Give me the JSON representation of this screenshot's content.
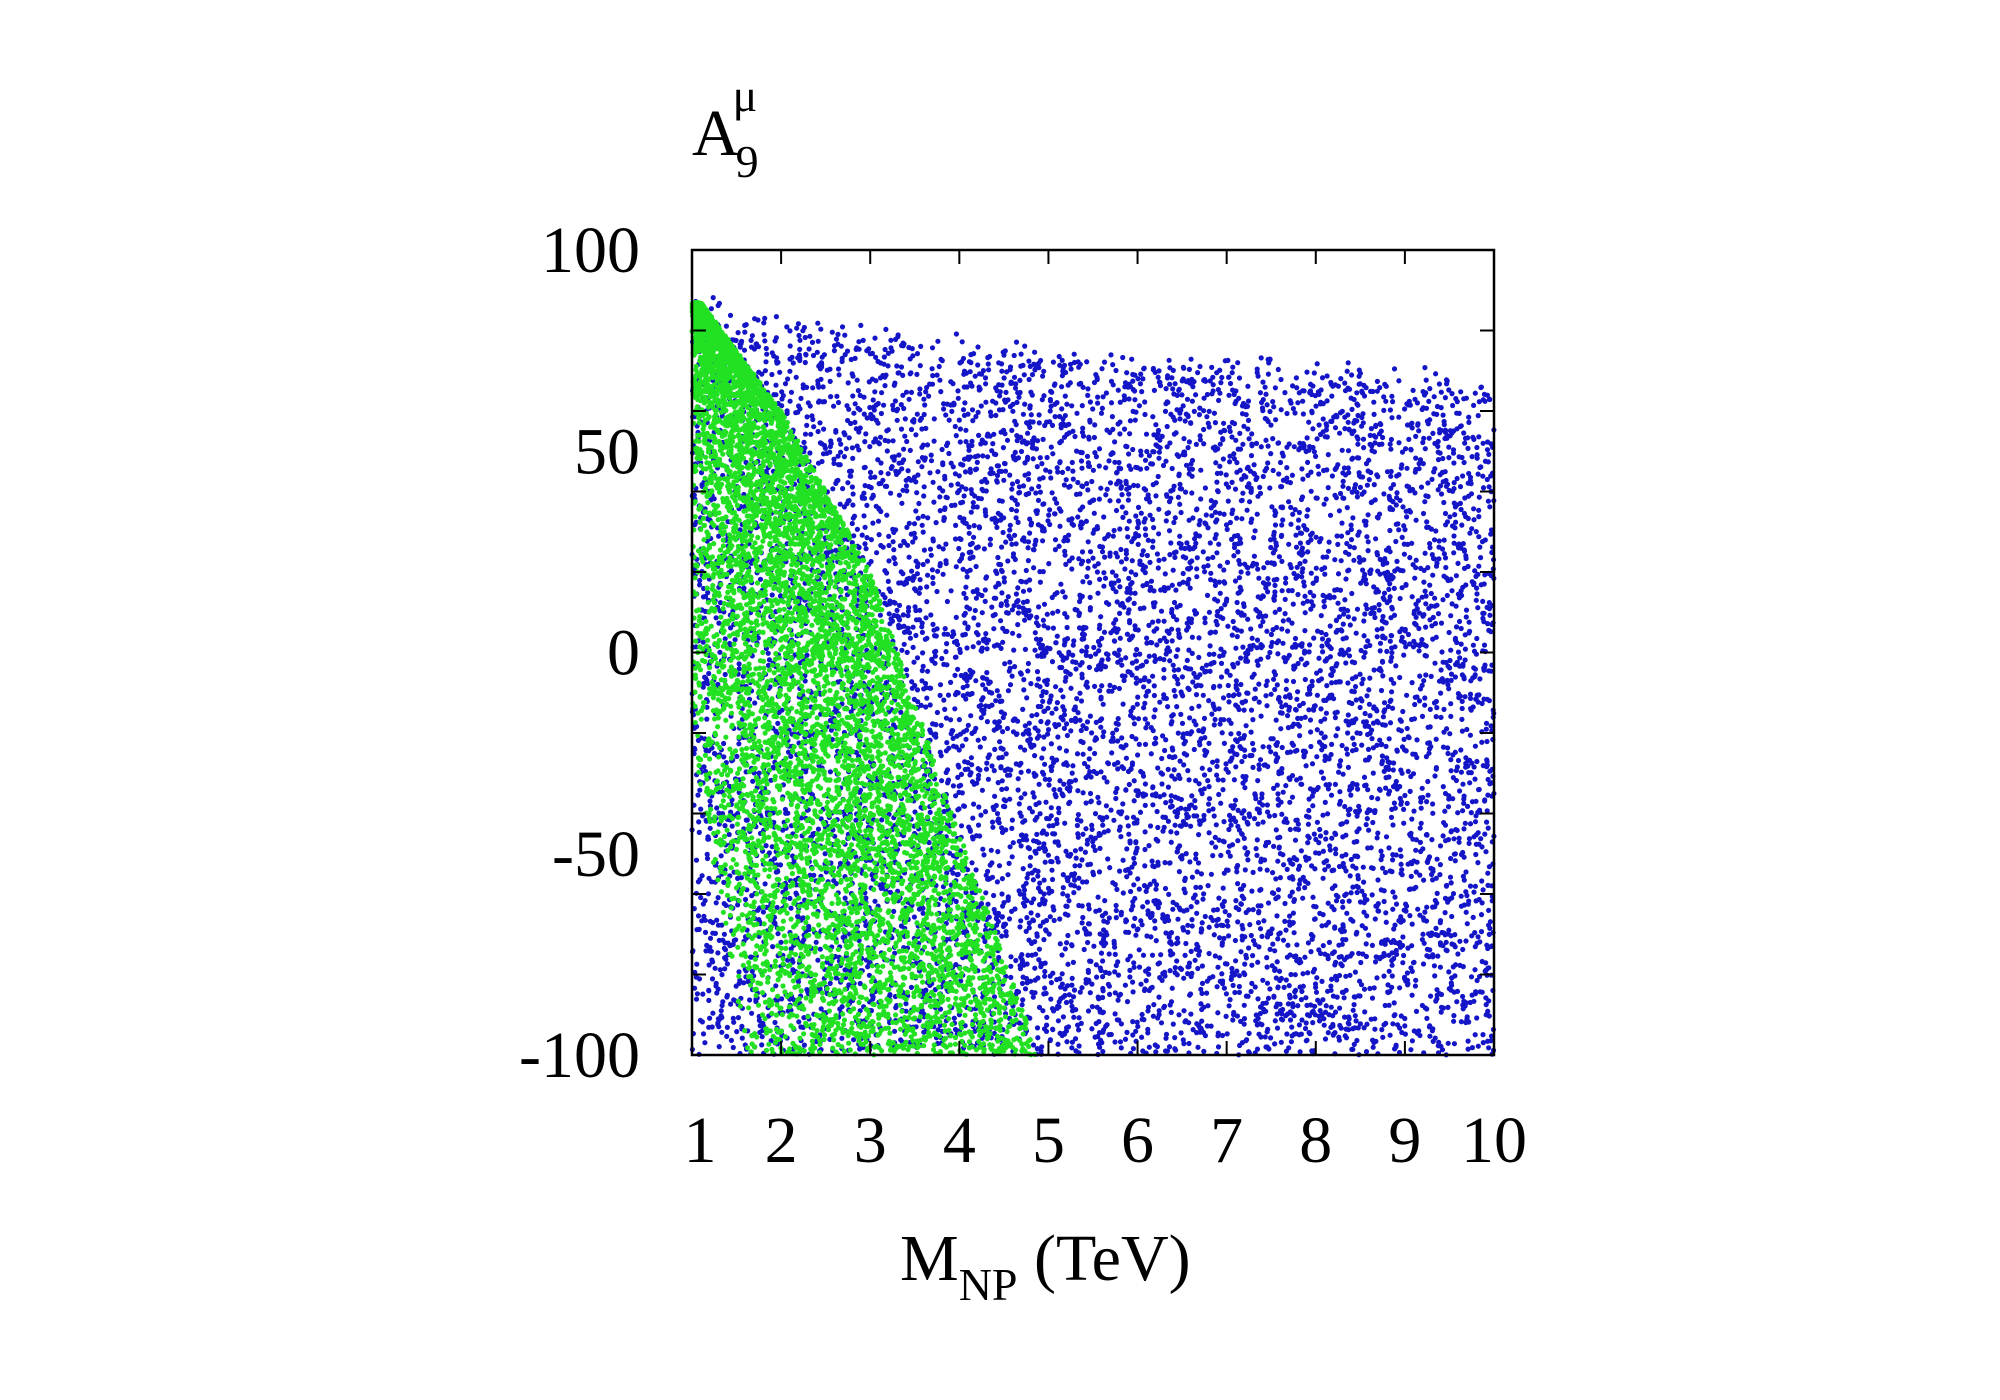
{
  "chart_data": {
    "type": "scatter",
    "ylabel": {
      "main": "A",
      "sub": "9",
      "sup": "μ"
    },
    "xlabel": {
      "main": "M",
      "sub": "NP",
      "rest": " (TeV)"
    },
    "xlim": [
      1,
      10
    ],
    "ylim": [
      -100,
      100
    ],
    "x_ticks": [
      "1",
      "2",
      "3",
      "4",
      "5",
      "6",
      "7",
      "8",
      "9",
      "10"
    ],
    "y_ticks": [
      "100",
      "50",
      "0",
      "-50",
      "-100"
    ],
    "grid": false,
    "legend": "none",
    "series": [
      {
        "color": "#1515c8",
        "point_count": 9000,
        "region": "uniform over x in [1,10]; upper envelope y_max falls from ~90 at x=1 to ~70 at x=10",
        "upper_envelope": [
          [
            1,
            90
          ],
          [
            2,
            85
          ],
          [
            3,
            82
          ],
          [
            4,
            80
          ],
          [
            5,
            78
          ],
          [
            6,
            75
          ],
          [
            7,
            75
          ],
          [
            8,
            73
          ],
          [
            9,
            72
          ],
          [
            10,
            70
          ]
        ]
      },
      {
        "color": "#22e022",
        "point_count": 7000,
        "region": "wedge between x=1 and a right boundary running from (1.1, 87) to (4.9, -100)",
        "boundary": [
          [
            1.1,
            87
          ],
          [
            2.0,
            60
          ],
          [
            3.0,
            20
          ],
          [
            4.0,
            -45
          ],
          [
            4.9,
            -100
          ]
        ]
      }
    ]
  }
}
